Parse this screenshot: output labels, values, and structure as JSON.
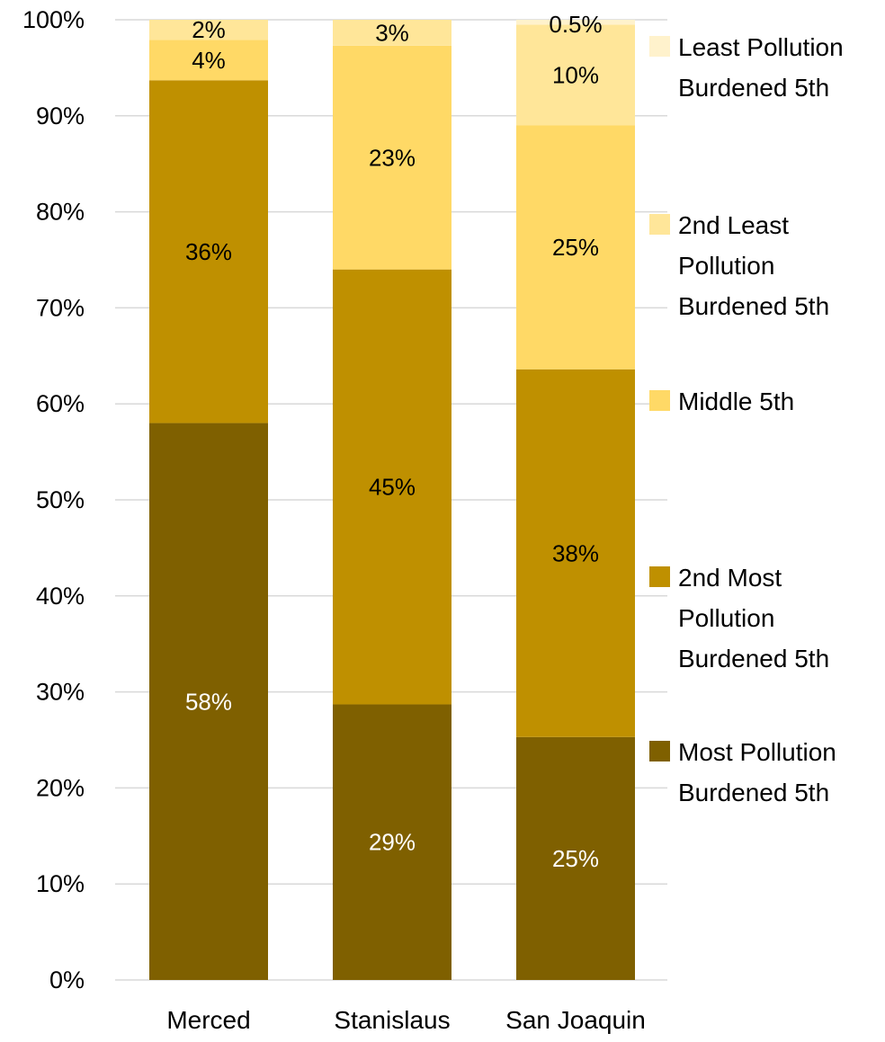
{
  "chart_data": {
    "type": "bar",
    "stacked": true,
    "orientation": "vertical",
    "title": "",
    "xlabel": "",
    "ylabel": "",
    "ylim": [
      0,
      100
    ],
    "y_ticks": [
      "0%",
      "10%",
      "20%",
      "30%",
      "40%",
      "50%",
      "60%",
      "70%",
      "80%",
      "90%",
      "100%"
    ],
    "y_tick_values": [
      0,
      10,
      20,
      30,
      40,
      50,
      60,
      70,
      80,
      90,
      100
    ],
    "grid": true,
    "legend_position": "right",
    "categories": [
      "Merced",
      "Stanislaus",
      "San Joaquin"
    ],
    "series": [
      {
        "name": "Most Pollution Burdened 5th",
        "legend_lines": [
          "Most Pollution",
          "Burdened 5th"
        ],
        "color": "#7f6000",
        "label_color": "#ffffff",
        "values": [
          58,
          28.7,
          25.3
        ],
        "labels": [
          "58%",
          "29%",
          "25%"
        ]
      },
      {
        "name": "2nd Most Pollution Burdened 5th",
        "legend_lines": [
          "2nd Most",
          "Pollution",
          "Burdened 5th"
        ],
        "color": "#bf9000",
        "label_color": "#000000",
        "values": [
          35.7,
          45.3,
          38.3
        ],
        "labels": [
          "36%",
          "45%",
          "38%"
        ]
      },
      {
        "name": "Middle 5th",
        "legend_lines": [
          "Middle 5th"
        ],
        "color": "#ffd966",
        "label_color": "#000000",
        "values": [
          4.2,
          23.3,
          25.4
        ],
        "labels": [
          "4%",
          "23%",
          "25%"
        ]
      },
      {
        "name": "2nd Least Pollution Burdened 5th",
        "legend_lines": [
          "2nd Least",
          "Pollution",
          "Burdened 5th"
        ],
        "color": "#ffe699",
        "label_color": "#000000",
        "values": [
          2.1,
          2.7,
          10.5
        ],
        "labels": [
          "2%",
          "3%",
          "10%"
        ]
      },
      {
        "name": "Least Pollution Burdened 5th",
        "legend_lines": [
          "Least Pollution",
          "Burdened 5th"
        ],
        "color": "#fff2cc",
        "label_color": "#000000",
        "values": [
          0,
          0,
          0.5
        ],
        "labels": [
          "",
          "",
          "0.5%"
        ]
      }
    ]
  }
}
